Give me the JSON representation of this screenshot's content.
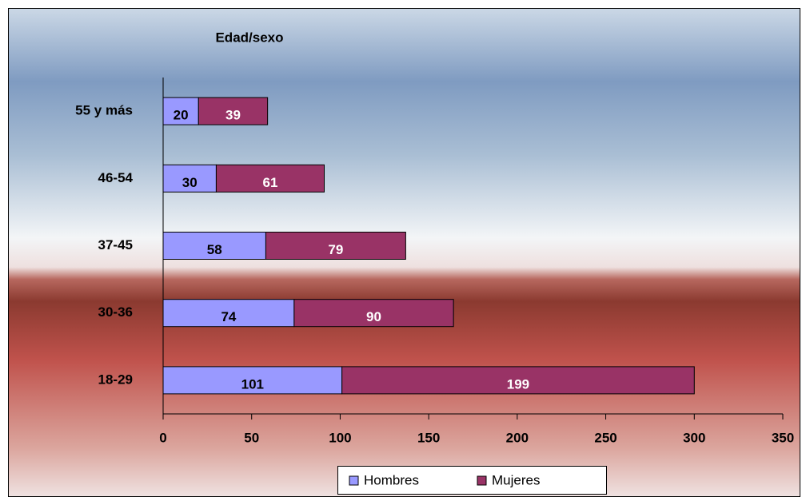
{
  "chart_data": {
    "type": "stacked_bar_horizontal",
    "title": "Edad/sexo",
    "categories": [
      "18-29",
      "30-36",
      "37-45",
      "46-54",
      "55 y más"
    ],
    "series": [
      {
        "name": "Hombres",
        "color": "#9999ff",
        "values": [
          101,
          74,
          58,
          30,
          20
        ]
      },
      {
        "name": "Mujeres",
        "color": "#993366",
        "values": [
          199,
          90,
          79,
          61,
          39
        ]
      }
    ],
    "xlim": [
      0,
      350
    ],
    "xticks": [
      0,
      50,
      100,
      150,
      200,
      250,
      300,
      350
    ],
    "legend": "bottom"
  }
}
